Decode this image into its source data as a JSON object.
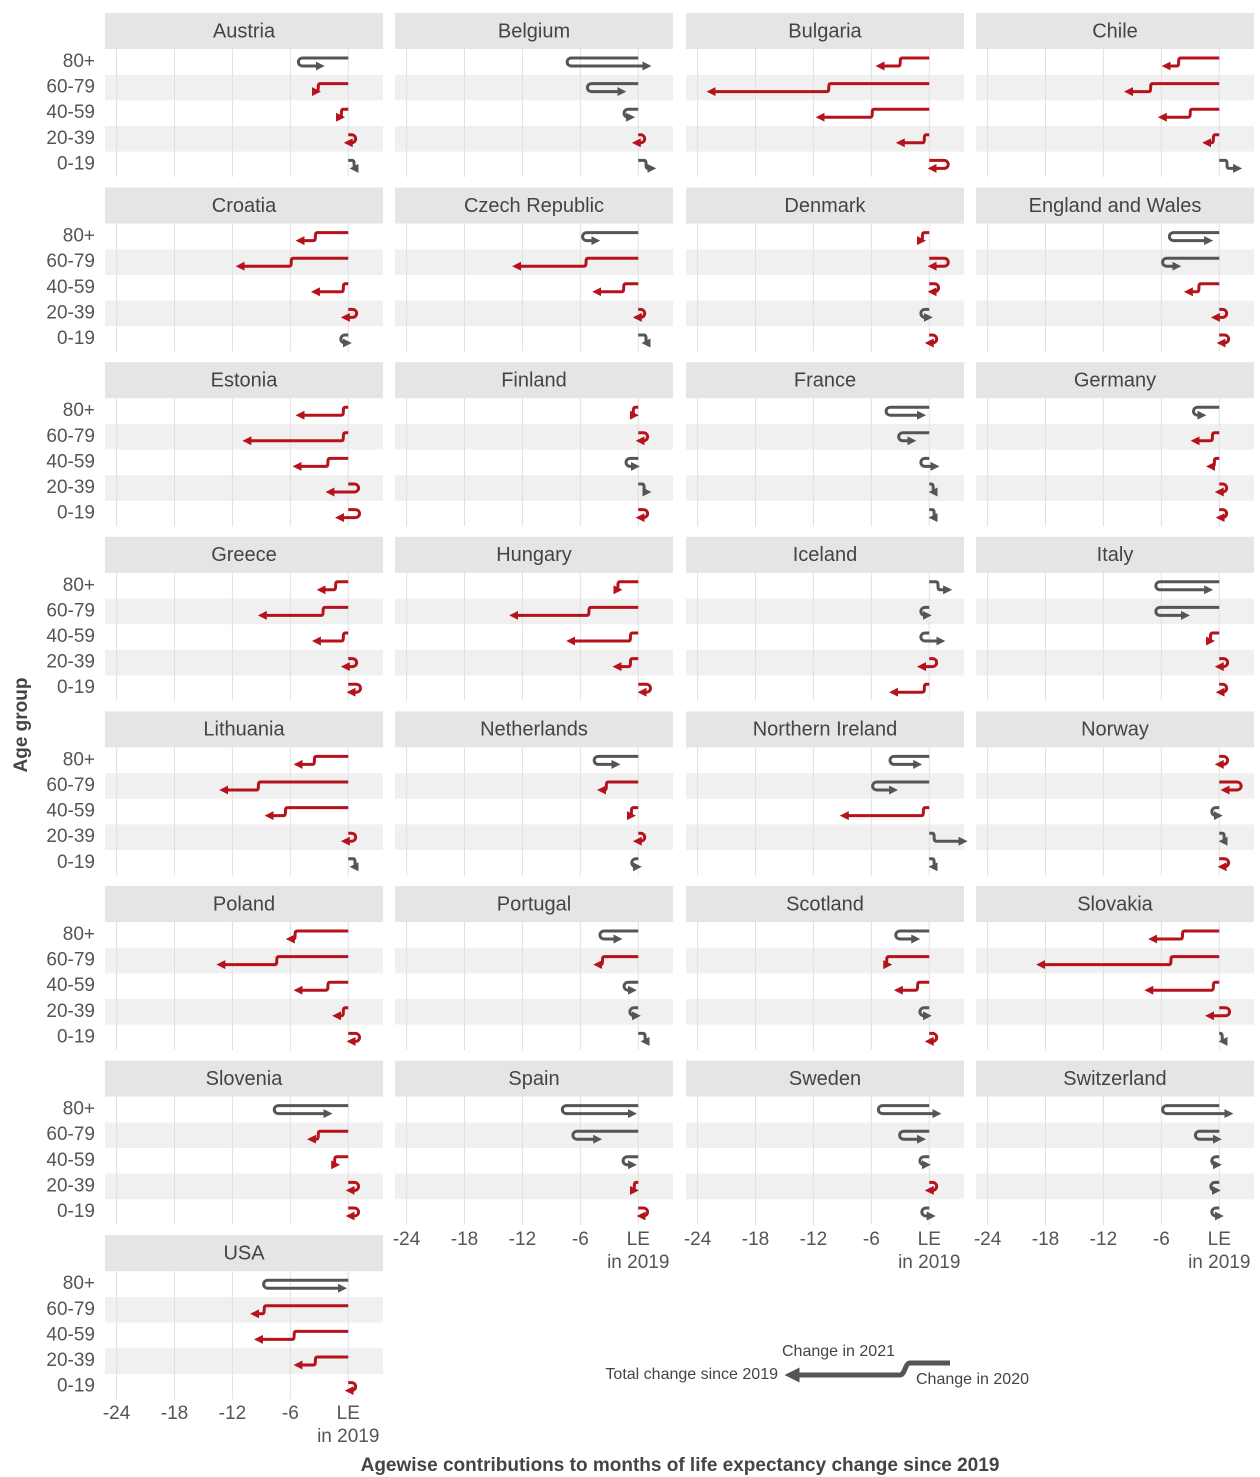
{
  "chart_data": {
    "type": "arrow-facets",
    "x_label": "Agewise contributions to months of life expectancy change since 2019",
    "y_label": "Age group",
    "age_groups": [
      "80+",
      "60-79",
      "40-59",
      "20-39",
      "0-19"
    ],
    "xlim": [
      -25.2,
      3.6
    ],
    "xticks": [
      -24,
      -18,
      -12,
      -6,
      {
        "value": 0,
        "label": "LE\nin 2019"
      }
    ],
    "decline_color": "#b5121b",
    "recovery_color": "#555555",
    "legend": {
      "change_2021": "Change in 2021",
      "total": "Total change since 2019",
      "change_2020": "Change in 2020"
    },
    "panels": [
      {
        "name": "Austria",
        "change_2020": [
          -4.7,
          -2.9,
          -0.5,
          0.3,
          0.4
        ],
        "change_2021": [
          1.8,
          -0.4,
          -0.3,
          -0.3,
          0.2
        ]
      },
      {
        "name": "Belgium",
        "change_2020": [
          -6.9,
          -4.8,
          -1.0,
          0.2,
          0.6
        ],
        "change_2021": [
          7.8,
          3.1,
          0.2,
          -0.4,
          0.8
        ]
      },
      {
        "name": "Bulgaria",
        "change_2020": [
          -2.8,
          -10.2,
          -5.7,
          -0.3,
          1.5
        ],
        "change_2021": [
          -2.3,
          -12.4,
          -5.6,
          -2.7,
          -1.2
        ]
      },
      {
        "name": "Chile",
        "change_2020": [
          -4.0,
          -6.9,
          -2.8,
          -0.4,
          0.6
        ],
        "change_2021": [
          -1.5,
          -2.5,
          -3.1,
          -0.9,
          1.3
        ]
      },
      {
        "name": "Croatia",
        "change_2020": [
          -3.2,
          -5.7,
          -0.3,
          0.4,
          -0.3
        ],
        "change_2021": [
          -1.8,
          -5.5,
          -3.1,
          -0.7,
          0.2
        ]
      },
      {
        "name": "Czech Republic",
        "change_2020": [
          -5.3,
          -5.2,
          -1.3,
          0.2,
          0.6
        ],
        "change_2021": [
          0.9,
          -7.4,
          -3.0,
          -0.3,
          0.2
        ]
      },
      {
        "name": "Denmark",
        "change_2020": [
          -0.5,
          1.5,
          0.5,
          -0.4,
          0.3
        ],
        "change_2021": [
          -0.3,
          -1.2,
          -0.2,
          0.3,
          -0.3
        ]
      },
      {
        "name": "England and Wales",
        "change_2020": [
          -4.7,
          -5.4,
          -1.9,
          0.3,
          0.5
        ],
        "change_2021": [
          3.6,
          1.0,
          -1.3,
          -0.7,
          -0.3
        ]
      },
      {
        "name": "Estonia",
        "change_2020": [
          -0.3,
          -0.3,
          -1.9,
          0.6,
          0.7
        ],
        "change_2021": [
          -4.7,
          -10.2,
          -3.4,
          -2.5,
          -1.6
        ]
      },
      {
        "name": "Finland",
        "change_2020": [
          -0.3,
          0.5,
          -0.8,
          0.4,
          0.5
        ],
        "change_2021": [
          -0.1,
          -0.3,
          0.5,
          0.5,
          -0.3
        ]
      },
      {
        "name": "France",
        "change_2020": [
          -4.0,
          -2.7,
          -0.4,
          0.2,
          0.3
        ],
        "change_2021": [
          3.2,
          0.9,
          1.0,
          0.2,
          0.1
        ]
      },
      {
        "name": "Germany",
        "change_2020": [
          -2.2,
          -0.5,
          -0.3,
          0.3,
          0.3
        ],
        "change_2021": [
          0.4,
          -2.0,
          -0.6,
          -0.3,
          -0.2
        ]
      },
      {
        "name": "Greece",
        "change_2020": [
          -1.1,
          -2.4,
          -0.3,
          0.4,
          0.8
        ],
        "change_2021": [
          -1.7,
          -6.5,
          -3.0,
          -0.7,
          -0.5
        ]
      },
      {
        "name": "Hungary",
        "change_2020": [
          -1.9,
          -4.9,
          -0.6,
          -0.6,
          0.8
        ],
        "change_2021": [
          -0.2,
          -8.0,
          -6.4,
          -1.6,
          -0.4
        ]
      },
      {
        "name": "Iceland",
        "change_2020": [
          0.7,
          -0.4,
          -0.4,
          0.3,
          -0.3
        ],
        "change_2021": [
          1.2,
          0.2,
          1.6,
          -1.1,
          -3.4
        ]
      },
      {
        "name": "Italy",
        "change_2020": [
          -6.1,
          -6.1,
          -0.7,
          0.4,
          0.3
        ],
        "change_2021": [
          5.0,
          2.6,
          -0.2,
          -0.4,
          -0.2
        ]
      },
      {
        "name": "Lithuania",
        "change_2020": [
          -3.3,
          -9.1,
          -6.3,
          0.3,
          0.5
        ],
        "change_2021": [
          -1.9,
          -3.8,
          -1.9,
          -0.6,
          0.1
        ]
      },
      {
        "name": "Netherlands",
        "change_2020": [
          -4.1,
          -3.1,
          -0.5,
          0.2,
          -0.2
        ],
        "change_2021": [
          1.8,
          -0.7,
          -0.2,
          -0.3,
          0.1
        ]
      },
      {
        "name": "Northern Ireland",
        "change_2020": [
          -3.6,
          -5.4,
          -0.4,
          0.3,
          0.3
        ],
        "change_2021": [
          2.4,
          1.7,
          -8.4,
          3.2,
          0.1
        ]
      },
      {
        "name": "Norway",
        "change_2020": [
          0.4,
          1.8,
          -0.3,
          0.3,
          0.5
        ],
        "change_2021": [
          -0.4,
          -1.2,
          0.2,
          0.1,
          -0.2
        ]
      },
      {
        "name": "Poland",
        "change_2020": [
          -5.3,
          -7.2,
          -1.9,
          -0.3,
          0.7
        ],
        "change_2021": [
          -0.7,
          -6.0,
          -3.3,
          -0.9,
          -0.4
        ]
      },
      {
        "name": "Portugal",
        "change_2020": [
          -3.5,
          -3.5,
          -1.0,
          -0.4,
          0.5
        ],
        "change_2021": [
          1.4,
          -0.7,
          0.4,
          0.2,
          0.2
        ]
      },
      {
        "name": "Scotland",
        "change_2020": [
          -3.0,
          -4.2,
          -1.0,
          -0.5,
          0.3
        ],
        "change_2021": [
          1.6,
          -0.1,
          -2.2,
          0.3,
          -0.3
        ]
      },
      {
        "name": "Slovakia",
        "change_2020": [
          -3.6,
          -4.8,
          -0.4,
          0.6,
          0.1
        ],
        "change_2021": [
          -3.3,
          -13.7,
          -6.9,
          -1.6,
          0.3
        ]
      },
      {
        "name": "Slovenia",
        "change_2020": [
          -7.2,
          -2.9,
          -1.2,
          0.6,
          0.6
        ],
        "change_2021": [
          5.1,
          -0.9,
          -0.1,
          -0.4,
          -0.4
        ]
      },
      {
        "name": "Spain",
        "change_2020": [
          -7.4,
          -6.3,
          -1.1,
          -0.2,
          0.5
        ],
        "change_2021": [
          6.8,
          2.1,
          0.5,
          -0.2,
          -0.2
        ]
      },
      {
        "name": "Sweden",
        "change_2020": [
          -4.8,
          -2.6,
          -0.5,
          0.3,
          -0.3
        ],
        "change_2021": [
          5.6,
          1.8,
          0.2,
          -0.3,
          0.5
        ]
      },
      {
        "name": "Switzerland",
        "change_2020": [
          -5.4,
          -2.0,
          -0.3,
          -0.4,
          -0.3
        ],
        "change_2021": [
          6.4,
          1.8,
          0.1,
          0.1,
          0.3
        ]
      },
      {
        "name": "USA",
        "change_2020": [
          -8.3,
          -8.5,
          -5.4,
          -3.2,
          0.3
        ],
        "change_2021": [
          7.7,
          -1.2,
          -3.9,
          -2.0,
          -0.2
        ]
      }
    ]
  }
}
